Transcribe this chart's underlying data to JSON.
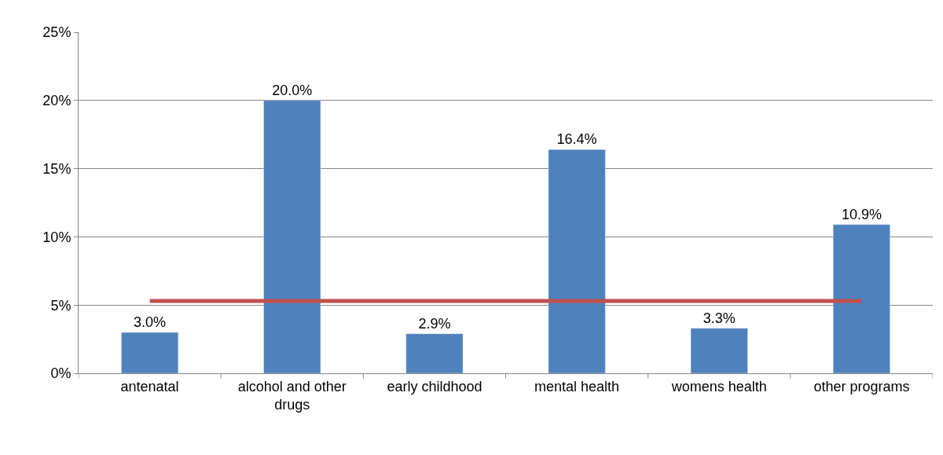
{
  "chart_data": {
    "type": "bar",
    "categories": [
      "antenatal",
      "alcohol and other drugs",
      "early childhood",
      "mental health",
      "womens health",
      "other programs"
    ],
    "series": [
      {
        "color": "#4f81bd",
        "values": [
          3.0,
          20.0,
          2.9,
          16.4,
          3.3,
          10.9
        ],
        "value_labels": [
          "3.0%",
          "20.0%",
          "2.9%",
          "16.4%",
          "3.3%",
          "10.9%"
        ]
      },
      {
        "type": "line",
        "color": "#c0504d",
        "values": [
          5.3,
          5.3,
          5.3,
          5.3,
          5.3,
          5.3
        ]
      }
    ],
    "ylim": [
      0,
      25
    ],
    "yticks": [
      {
        "value": 0,
        "label": "0%"
      },
      {
        "value": 5,
        "label": "5%"
      },
      {
        "value": 10,
        "label": "10%"
      },
      {
        "value": 15,
        "label": "15%"
      },
      {
        "value": 20,
        "label": "20%"
      },
      {
        "value": 25,
        "label": "25%"
      }
    ],
    "grid": "y",
    "marker": "none",
    "line_style": "solid"
  }
}
